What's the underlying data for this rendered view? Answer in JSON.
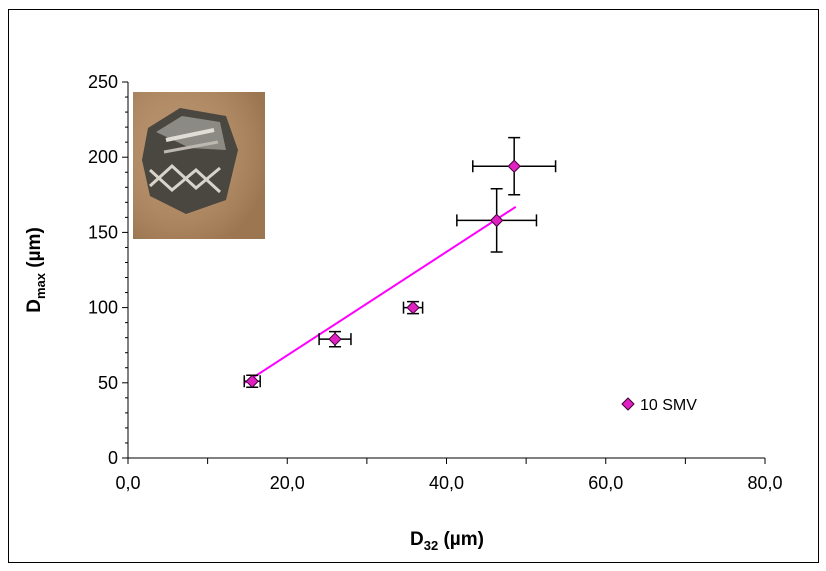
{
  "chart_data": {
    "type": "scatter",
    "x_label": {
      "text": "D",
      "subscript": "32",
      "suffix": " (µm)"
    },
    "y_label": {
      "text": "D",
      "subscript": "max",
      "suffix": " (µm)"
    },
    "series": [
      {
        "name": "10 SMV",
        "color": "#e020c0",
        "x": [
          15.6,
          26.0,
          35.8,
          46.3,
          48.5
        ],
        "y": [
          51,
          79,
          100,
          158,
          194
        ],
        "xerr": [
          1,
          2,
          1.2,
          5,
          5.2
        ],
        "yerr": [
          4,
          5,
          4,
          21,
          19
        ]
      }
    ],
    "trendline": {
      "color": "#ff00ff",
      "x": [
        14.7,
        48.7
      ],
      "y": [
        50,
        167
      ]
    },
    "xlim": [
      0,
      80
    ],
    "ylim": [
      0,
      250
    ],
    "xticks": [
      {
        "value": 0,
        "label": "0,0"
      },
      {
        "value": 20,
        "label": "20,0"
      },
      {
        "value": 40,
        "label": "40,0"
      },
      {
        "value": 60,
        "label": "60,0"
      },
      {
        "value": 80,
        "label": "80,0"
      }
    ],
    "yticks": [
      0,
      50,
      100,
      150,
      200,
      250
    ],
    "xminorticks": [
      10,
      30,
      50,
      70
    ],
    "yminorticks": [
      10,
      20,
      30,
      40,
      60,
      70,
      80,
      90,
      110,
      120,
      130,
      140,
      160,
      170,
      180,
      190,
      210,
      220,
      230,
      240
    ],
    "legend": "lower right"
  }
}
